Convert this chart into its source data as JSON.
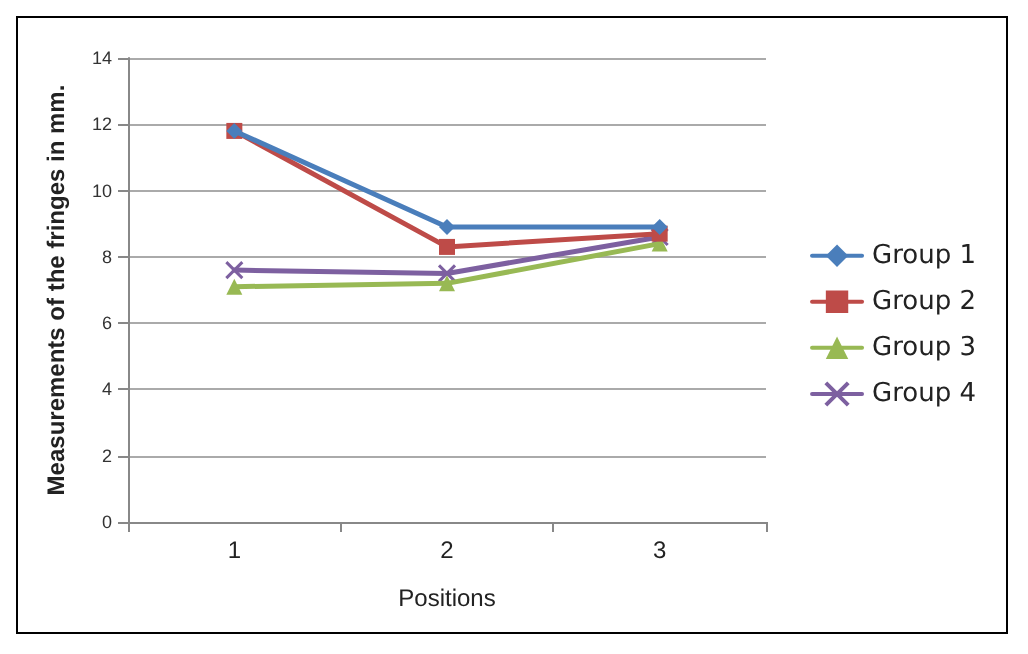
{
  "chart_data": {
    "type": "line",
    "xlabel": "Positions",
    "ylabel": "Measurements of the fringes in mm.",
    "categories": [
      "1",
      "2",
      "3"
    ],
    "series": [
      {
        "name": "Group 1",
        "color": "#4a7ebb",
        "marker": "diamond",
        "values": [
          11.8,
          8.9,
          8.9
        ]
      },
      {
        "name": "Group 2",
        "color": "#be4b48",
        "marker": "square",
        "values": [
          11.8,
          8.3,
          8.7
        ]
      },
      {
        "name": "Group 3",
        "color": "#98b954",
        "marker": "triangle",
        "values": [
          7.1,
          7.2,
          8.4
        ]
      },
      {
        "name": "Group 4",
        "color": "#7d60a0",
        "marker": "cross",
        "values": [
          7.6,
          7.5,
          8.6
        ]
      }
    ],
    "ylim": [
      0,
      14
    ],
    "yticks": [
      0,
      2,
      4,
      6,
      8,
      10,
      12,
      14
    ],
    "grid": "y",
    "legend": "right",
    "line_style": "solid"
  }
}
